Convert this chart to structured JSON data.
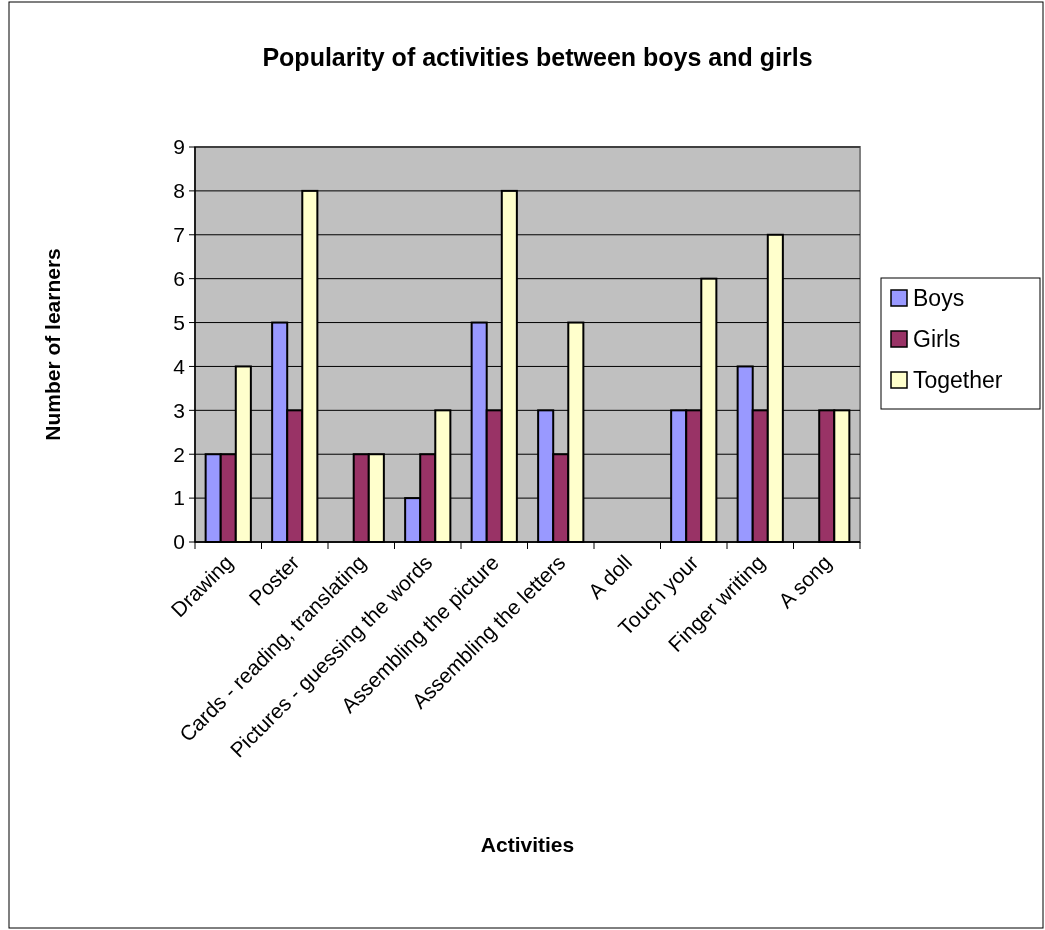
{
  "chart_data": {
    "type": "bar",
    "title": "Popularity of activities between boys and girls",
    "xlabel": "Activities",
    "ylabel": "Number of learners",
    "categories": [
      "Drawing",
      "Poster",
      "Cards - reading, translating",
      "Pictures - guessing the words",
      "Assembling the picture",
      "Assembling the letters",
      "A doll",
      "Touch your",
      "Finger writing",
      "A song"
    ],
    "series": [
      {
        "name": "Boys",
        "color": "#9999ff",
        "values": [
          2,
          5,
          0,
          1,
          5,
          3,
          0,
          3,
          4,
          0
        ]
      },
      {
        "name": "Girls",
        "color": "#993366",
        "values": [
          2,
          3,
          2,
          2,
          3,
          2,
          0,
          3,
          3,
          3
        ]
      },
      {
        "name": "Together",
        "color": "#ffffcc",
        "values": [
          4,
          8,
          2,
          3,
          8,
          5,
          0,
          6,
          7,
          3
        ]
      }
    ],
    "ylim": [
      0,
      9
    ],
    "yticks": [
      0,
      1,
      2,
      3,
      4,
      5,
      6,
      7,
      8,
      9
    ],
    "grid": "y",
    "legend": "right"
  }
}
